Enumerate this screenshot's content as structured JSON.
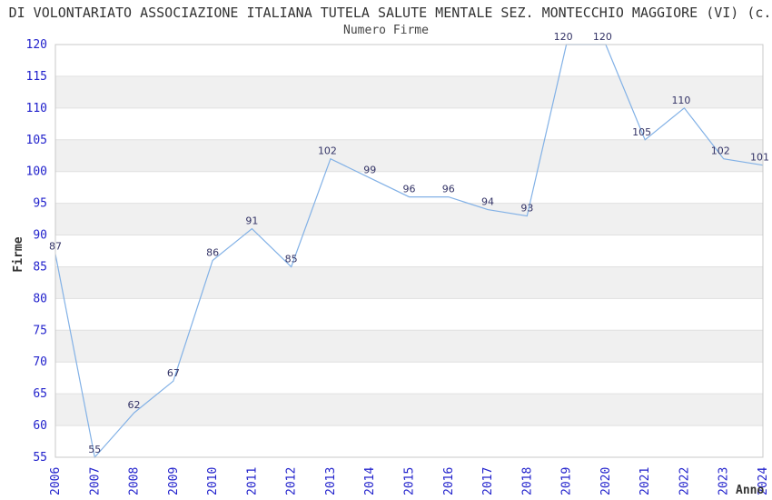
{
  "page": {
    "title": "I DI VOLONTARIATO ASSOCIAZIONE ITALIANA TUTELA SALUTE MENTALE SEZ. MONTECCHIO MAGGIORE (VI) (c.f",
    "subtitle": "Numero Firme"
  },
  "chart_data": {
    "type": "line",
    "title": "I DI VOLONTARIATO ASSOCIAZIONE ITALIANA TUTELA SALUTE MENTALE SEZ. MONTECCHIO MAGGIORE (VI) (c.f",
    "subtitle": "Numero Firme",
    "xlabel": "Anno",
    "ylabel": "Firme",
    "categories": [
      "2006",
      "2007",
      "2008",
      "2009",
      "2010",
      "2011",
      "2012",
      "2013",
      "2014",
      "2015",
      "2016",
      "2017",
      "2018",
      "2019",
      "2020",
      "2021",
      "2022",
      "2023",
      "2024"
    ],
    "values": [
      87,
      55,
      62,
      67,
      86,
      91,
      85,
      102,
      99,
      96,
      96,
      94,
      93,
      120,
      120,
      105,
      110,
      102,
      101
    ],
    "ylim": [
      55,
      120
    ],
    "ytick_step": 5,
    "grid": true,
    "legend": "none",
    "band_pattern": "alternating-horizontal",
    "colors": {
      "line": "#82b1e6",
      "tick_label": "#2222cc",
      "data_label": "#333366",
      "band": "#f0f0f0",
      "gridline": "#e0e0e0",
      "border": "#c9c9c9",
      "text": "#333333"
    }
  }
}
